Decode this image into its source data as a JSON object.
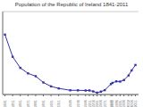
{
  "chart_data": {
    "type": "line",
    "title": "Population of the Republic of Ireland 1841-2011",
    "x": [
      1841,
      1851,
      1861,
      1871,
      1881,
      1891,
      1901,
      1911,
      1926,
      1936,
      1946,
      1951,
      1956,
      1961,
      1966,
      1971,
      1979,
      1981,
      1986,
      1991,
      1996,
      2002,
      2006,
      2011
    ],
    "values": [
      6529000,
      5112000,
      4402000,
      4053000,
      3870000,
      3469000,
      3222000,
      3090000,
      2972000,
      2968000,
      2955000,
      2960000,
      2898000,
      2818000,
      2884000,
      2978000,
      3368000,
      3443000,
      3541000,
      3526000,
      3626000,
      3917000,
      4239000,
      4588000
    ],
    "color": "#3333aa",
    "marker": "square",
    "xlim": [
      1838,
      2015
    ],
    "xticks": [
      1841,
      1851,
      1861,
      1871,
      1881,
      1891,
      1901,
      1911,
      1926,
      1936,
      1946,
      1951,
      1956,
      1961,
      1966,
      1971,
      1979,
      1981,
      1986,
      1991,
      1996,
      2002,
      2006,
      2011
    ],
    "ylim": [
      2700000,
      8000000
    ],
    "yticks": [
      3000000,
      3500000,
      4000000,
      4500000,
      5000000,
      5500000,
      6000000,
      6500000,
      7000000,
      7500000,
      8000000
    ],
    "grid": true,
    "tick_labels": "x"
  }
}
